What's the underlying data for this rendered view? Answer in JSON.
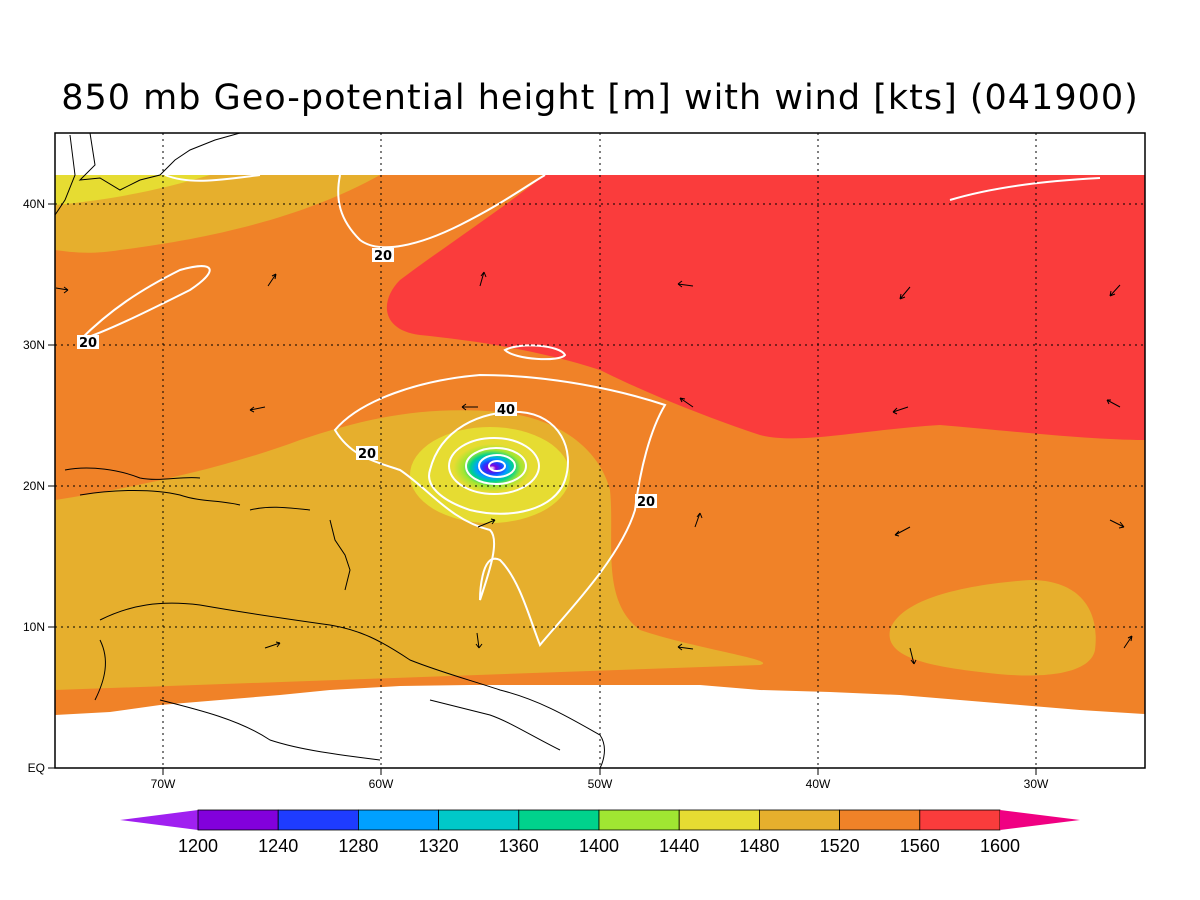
{
  "title": "850 mb Geo-potential height [m] with wind [kts] (041900)",
  "map": {
    "lon_labels": [
      "70W",
      "60W",
      "50W",
      "40W",
      "30W"
    ],
    "lat_labels": [
      "40N",
      "30N",
      "20N",
      "10N",
      "EQ"
    ],
    "wind_contour_labels": [
      "20",
      "20",
      "20",
      "40",
      "20"
    ]
  },
  "colorbar": {
    "levels": [
      "1200",
      "1240",
      "1280",
      "1320",
      "1360",
      "1400",
      "1440",
      "1480",
      "1520",
      "1560",
      "1600"
    ],
    "colors": [
      "#a020f0",
      "#8200dc",
      "#1e3cff",
      "#00a0ff",
      "#00c8c8",
      "#00d28c",
      "#a0e632",
      "#e6dc32",
      "#e6af2d",
      "#f08228",
      "#fa3c3c",
      "#f00082"
    ]
  }
}
